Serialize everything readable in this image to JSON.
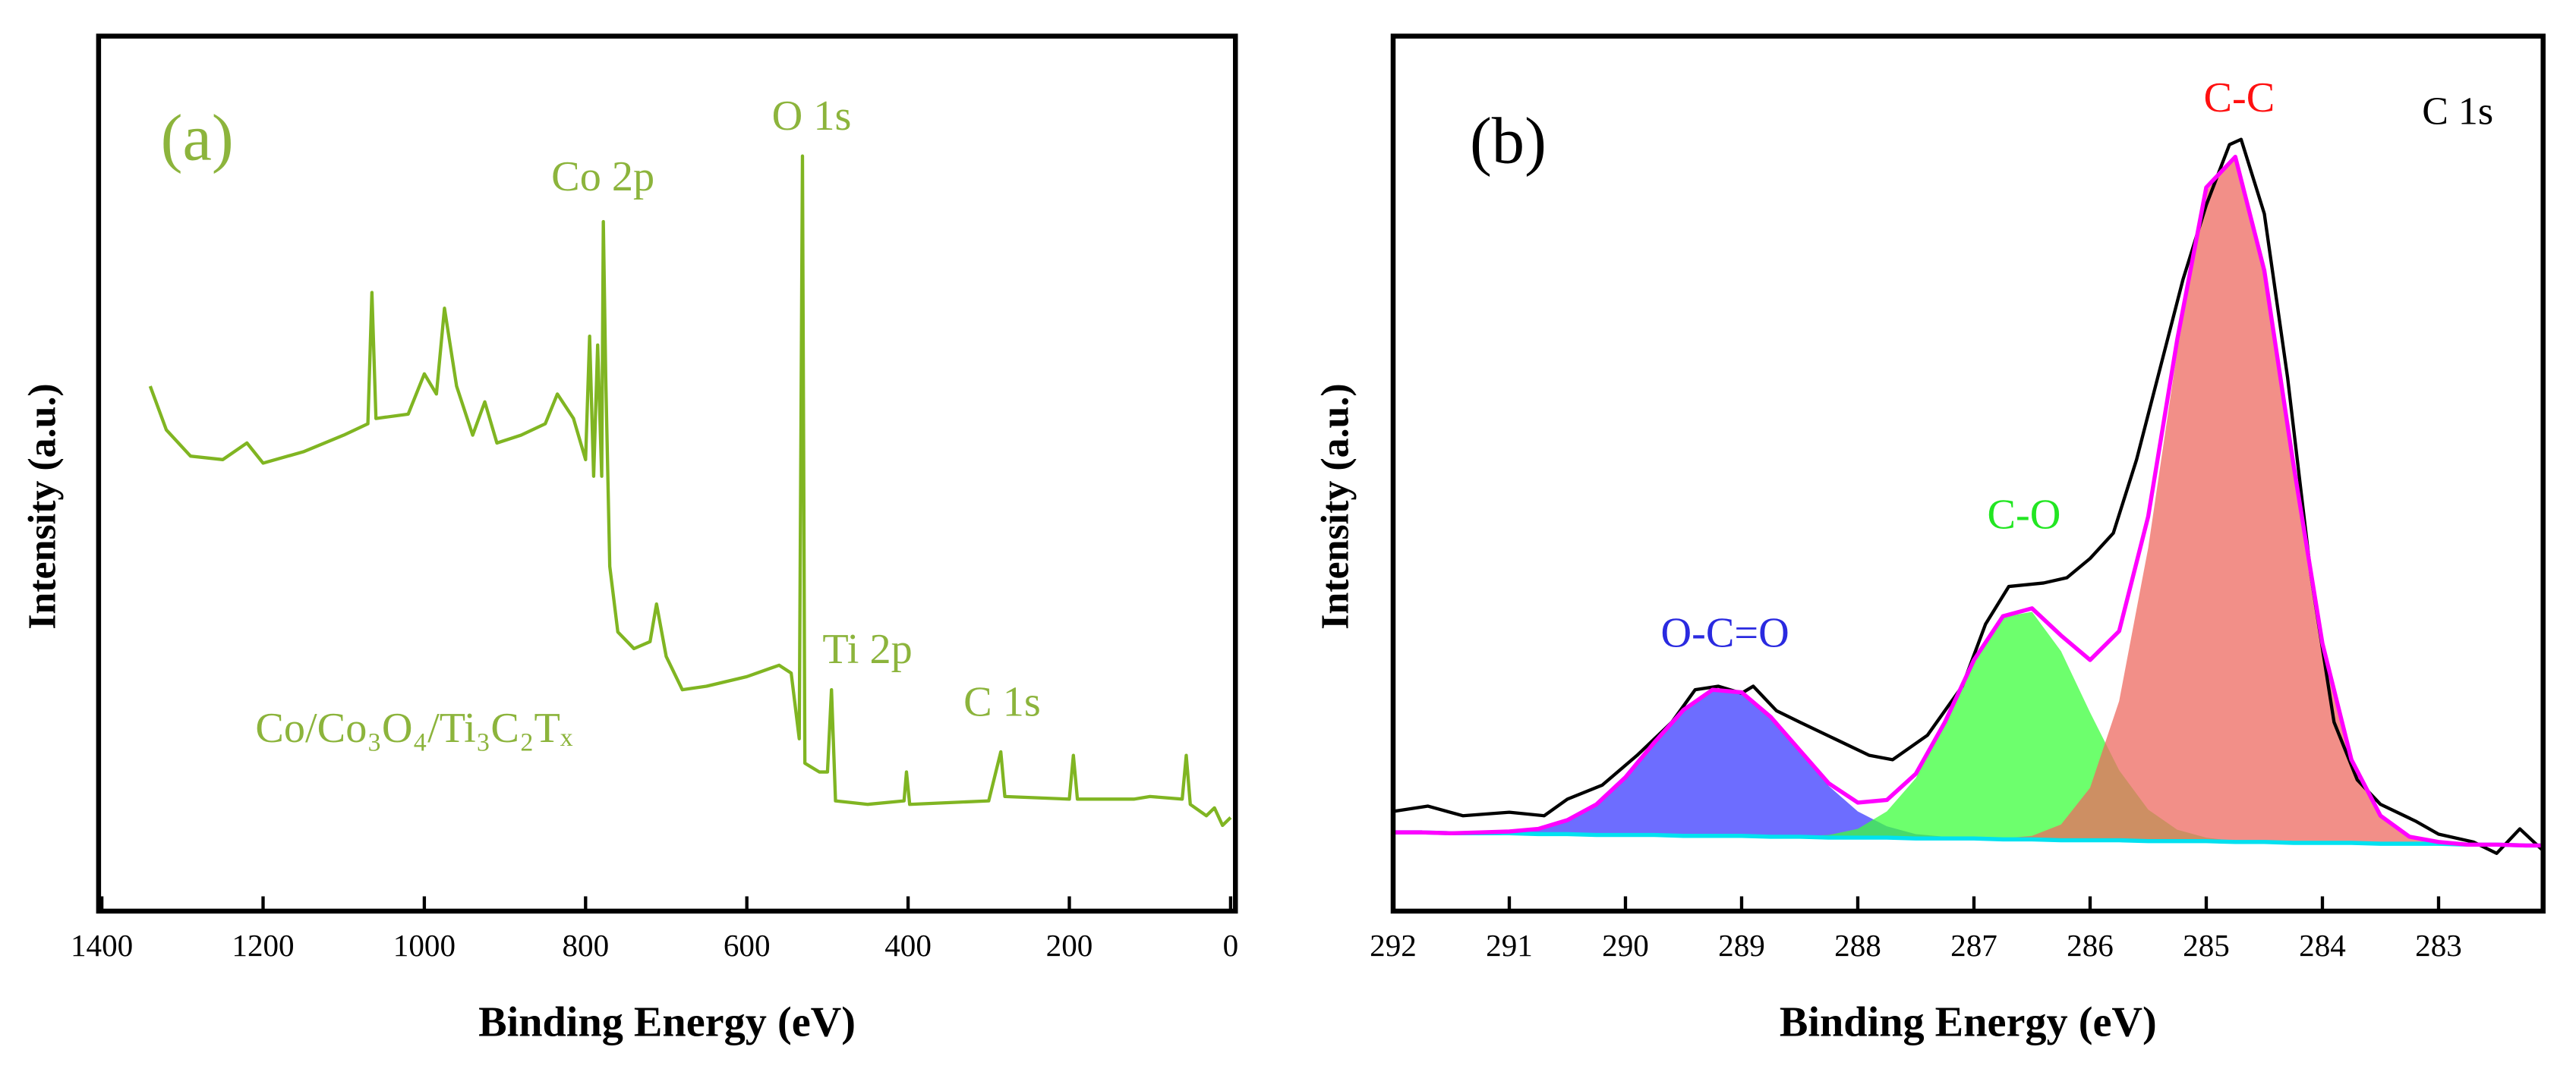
{
  "chart_data": [
    {
      "type": "line",
      "xlabel": "Binding Energy (eV)",
      "ylabel": "Intensity (a.u.)",
      "annotations": [
        "(a)",
        "Co 2p",
        "O 1s",
        "Ti 2p",
        "C 1s",
        "Co/Co₃O₄/Ti₃C₂Tₓ"
      ],
      "annotation_color": "#8cb43c",
      "color": "#80b522",
      "xlim": [
        1404,
        -6
      ],
      "ylim": [
        0,
        100
      ],
      "xticks": [
        1400,
        1200,
        1000,
        800,
        600,
        400,
        200,
        0
      ],
      "x": [
        1340,
        1320,
        1290,
        1250,
        1220,
        1200,
        1150,
        1100,
        1070,
        1065,
        1060,
        1020,
        1000,
        985,
        975,
        960,
        940,
        925,
        910,
        880,
        850,
        835,
        815,
        800,
        795,
        790,
        785,
        780,
        778,
        775,
        770,
        760,
        740,
        720,
        712,
        700,
        680,
        650,
        600,
        560,
        545,
        535,
        531,
        528,
        510,
        500,
        495,
        490,
        450,
        405,
        402,
        398,
        300,
        285,
        280,
        200,
        195,
        190,
        120,
        100,
        60,
        55,
        50,
        30,
        20,
        10,
        0
      ],
      "values": [
        60.0,
        55.0,
        52.0,
        51.6,
        53.5,
        51.2,
        52.5,
        54.4,
        55.7,
        70.7,
        56.3,
        56.8,
        61.4,
        59.1,
        68.9,
        60.0,
        54.4,
        58.2,
        53.5,
        54.4,
        55.7,
        59.1,
        56.3,
        51.6,
        65.7,
        49.7,
        64.7,
        49.7,
        78.8,
        61.0,
        39.4,
        31.9,
        30.0,
        30.8,
        35.1,
        29.1,
        25.3,
        25.7,
        26.8,
        28.1,
        27.2,
        19.7,
        86.3,
        16.9,
        15.9,
        15.9,
        25.3,
        12.6,
        12.2,
        12.6,
        15.9,
        12.2,
        12.6,
        18.2,
        13.1,
        12.8,
        17.8,
        12.8,
        12.8,
        13.1,
        12.8,
        17.8,
        12.2,
        10.9,
        11.8,
        9.8,
        10.7
      ]
    },
    {
      "type": "area",
      "xlabel": "Binding Energy (eV)",
      "ylabel": "Intensity (a.u.)",
      "annotations": [
        "(b)",
        "C 1s"
      ],
      "annotation_color": "#000000",
      "xlim": [
        292,
        282.1
      ],
      "ylim": [
        0,
        100
      ],
      "xticks": [
        292,
        291,
        290,
        289,
        288,
        287,
        286,
        285,
        284,
        283
      ],
      "x": [
        292,
        291.75,
        291.5,
        291.25,
        291,
        290.75,
        290.5,
        290.25,
        290,
        289.75,
        289.5,
        289.25,
        289,
        288.75,
        288.5,
        288.25,
        288,
        287.75,
        287.5,
        287.25,
        287,
        286.75,
        286.5,
        286.25,
        286,
        285.75,
        285.5,
        285.25,
        285,
        284.75,
        284.5,
        284.25,
        284,
        283.75,
        283.5,
        283.25,
        283,
        282.75,
        282.5,
        282.25,
        282
      ],
      "baseline": {
        "color": "#00e1f0",
        "values": [
          9.0,
          9.0,
          8.9,
          8.9,
          8.9,
          8.8,
          8.8,
          8.7,
          8.7,
          8.7,
          8.6,
          8.6,
          8.6,
          8.5,
          8.5,
          8.4,
          8.4,
          8.4,
          8.3,
          8.3,
          8.3,
          8.2,
          8.2,
          8.1,
          8.1,
          8.1,
          8.0,
          8.0,
          8.0,
          7.9,
          7.9,
          7.8,
          7.8,
          7.8,
          7.7,
          7.7,
          7.7,
          7.6,
          7.6,
          7.5,
          7.5
        ]
      },
      "components": [
        {
          "name": "O-C=O",
          "color": "#3c3cff",
          "label_color": "#2a2ae0",
          "values": [
            9.0,
            9.0,
            8.9,
            9.0,
            9.1,
            9.4,
            10.4,
            12.2,
            15.3,
            19.3,
            23.0,
            25.3,
            25.0,
            22.2,
            18.3,
            14.3,
            11.4,
            9.7,
            8.8,
            8.5,
            8.3,
            8.2,
            8.2,
            8.1,
            8.1,
            8.1,
            8.0,
            8.0,
            8.0,
            7.9,
            7.9,
            7.8,
            7.8,
            7.8,
            7.7,
            7.7,
            7.7,
            7.6,
            7.6,
            7.5,
            7.5
          ]
        },
        {
          "name": "C-O",
          "color": "#3cff3c",
          "label_color": "#22e622",
          "values": [
            9.0,
            9.0,
            8.9,
            8.9,
            8.9,
            8.8,
            8.8,
            8.7,
            8.7,
            8.7,
            8.6,
            8.6,
            8.6,
            8.5,
            8.6,
            8.7,
            9.4,
            11.4,
            15.2,
            21.4,
            28.6,
            33.6,
            34.2,
            29.7,
            22.7,
            16.1,
            11.6,
            9.3,
            8.4,
            8.0,
            7.9,
            7.8,
            7.8,
            7.8,
            7.7,
            7.7,
            7.7,
            7.6,
            7.6,
            7.5,
            7.5
          ]
        },
        {
          "name": "C-C",
          "color": "#ee6a60",
          "label_color": "#ff1010",
          "values": [
            9.0,
            9.0,
            8.9,
            8.9,
            8.9,
            8.8,
            8.8,
            8.7,
            8.7,
            8.7,
            8.6,
            8.6,
            8.6,
            8.5,
            8.5,
            8.4,
            8.4,
            8.4,
            8.3,
            8.3,
            8.3,
            8.3,
            8.6,
            9.9,
            14.1,
            24.0,
            41.5,
            64.0,
            82.3,
            86.1,
            73.2,
            51.1,
            30.6,
            17.3,
            10.9,
            8.5,
            7.9,
            7.6,
            7.6,
            7.5,
            7.5
          ]
        }
      ],
      "envelope": {
        "color": "#ff00ff",
        "values": [
          9.0,
          9.0,
          8.9,
          9.0,
          9.1,
          9.4,
          10.4,
          12.2,
          15.3,
          19.3,
          23.0,
          25.3,
          25.0,
          22.2,
          18.4,
          14.6,
          12.4,
          12.7,
          15.7,
          21.6,
          28.7,
          33.7,
          34.6,
          31.5,
          28.7,
          32.0,
          45.1,
          65.3,
          82.7,
          86.2,
          73.2,
          51.1,
          30.6,
          17.3,
          10.9,
          8.5,
          7.9,
          7.6,
          7.6,
          7.5,
          7.5
        ]
      },
      "raw": {
        "color": "#000000",
        "x": [
          292,
          291.7,
          291.4,
          291,
          290.7,
          290.5,
          290.2,
          289.9,
          289.6,
          289.4,
          289.2,
          289,
          288.9,
          288.7,
          288.5,
          288.2,
          287.9,
          287.7,
          287.4,
          287.1,
          286.9,
          286.7,
          286.4,
          286.2,
          286,
          285.8,
          285.6,
          285.4,
          285.2,
          285,
          284.8,
          284.7,
          284.5,
          284.3,
          284.1,
          283.9,
          283.7,
          283.5,
          283.2,
          283,
          282.7,
          282.5,
          282.3,
          282.1
        ],
        "values": [
          11.4,
          12.0,
          10.9,
          11.3,
          10.9,
          12.8,
          14.4,
          17.8,
          21.6,
          25.3,
          25.7,
          24.9,
          25.7,
          22.9,
          21.6,
          19.7,
          17.8,
          17.3,
          20.1,
          25.7,
          32.8,
          37.1,
          37.5,
          38.1,
          40.3,
          43.2,
          51.6,
          61.9,
          72.2,
          80.7,
          87.6,
          88.2,
          79.7,
          61.0,
          38.5,
          21.6,
          15.0,
          12.2,
          10.3,
          8.8,
          7.9,
          6.6,
          9.4,
          6.9
        ]
      }
    }
  ]
}
